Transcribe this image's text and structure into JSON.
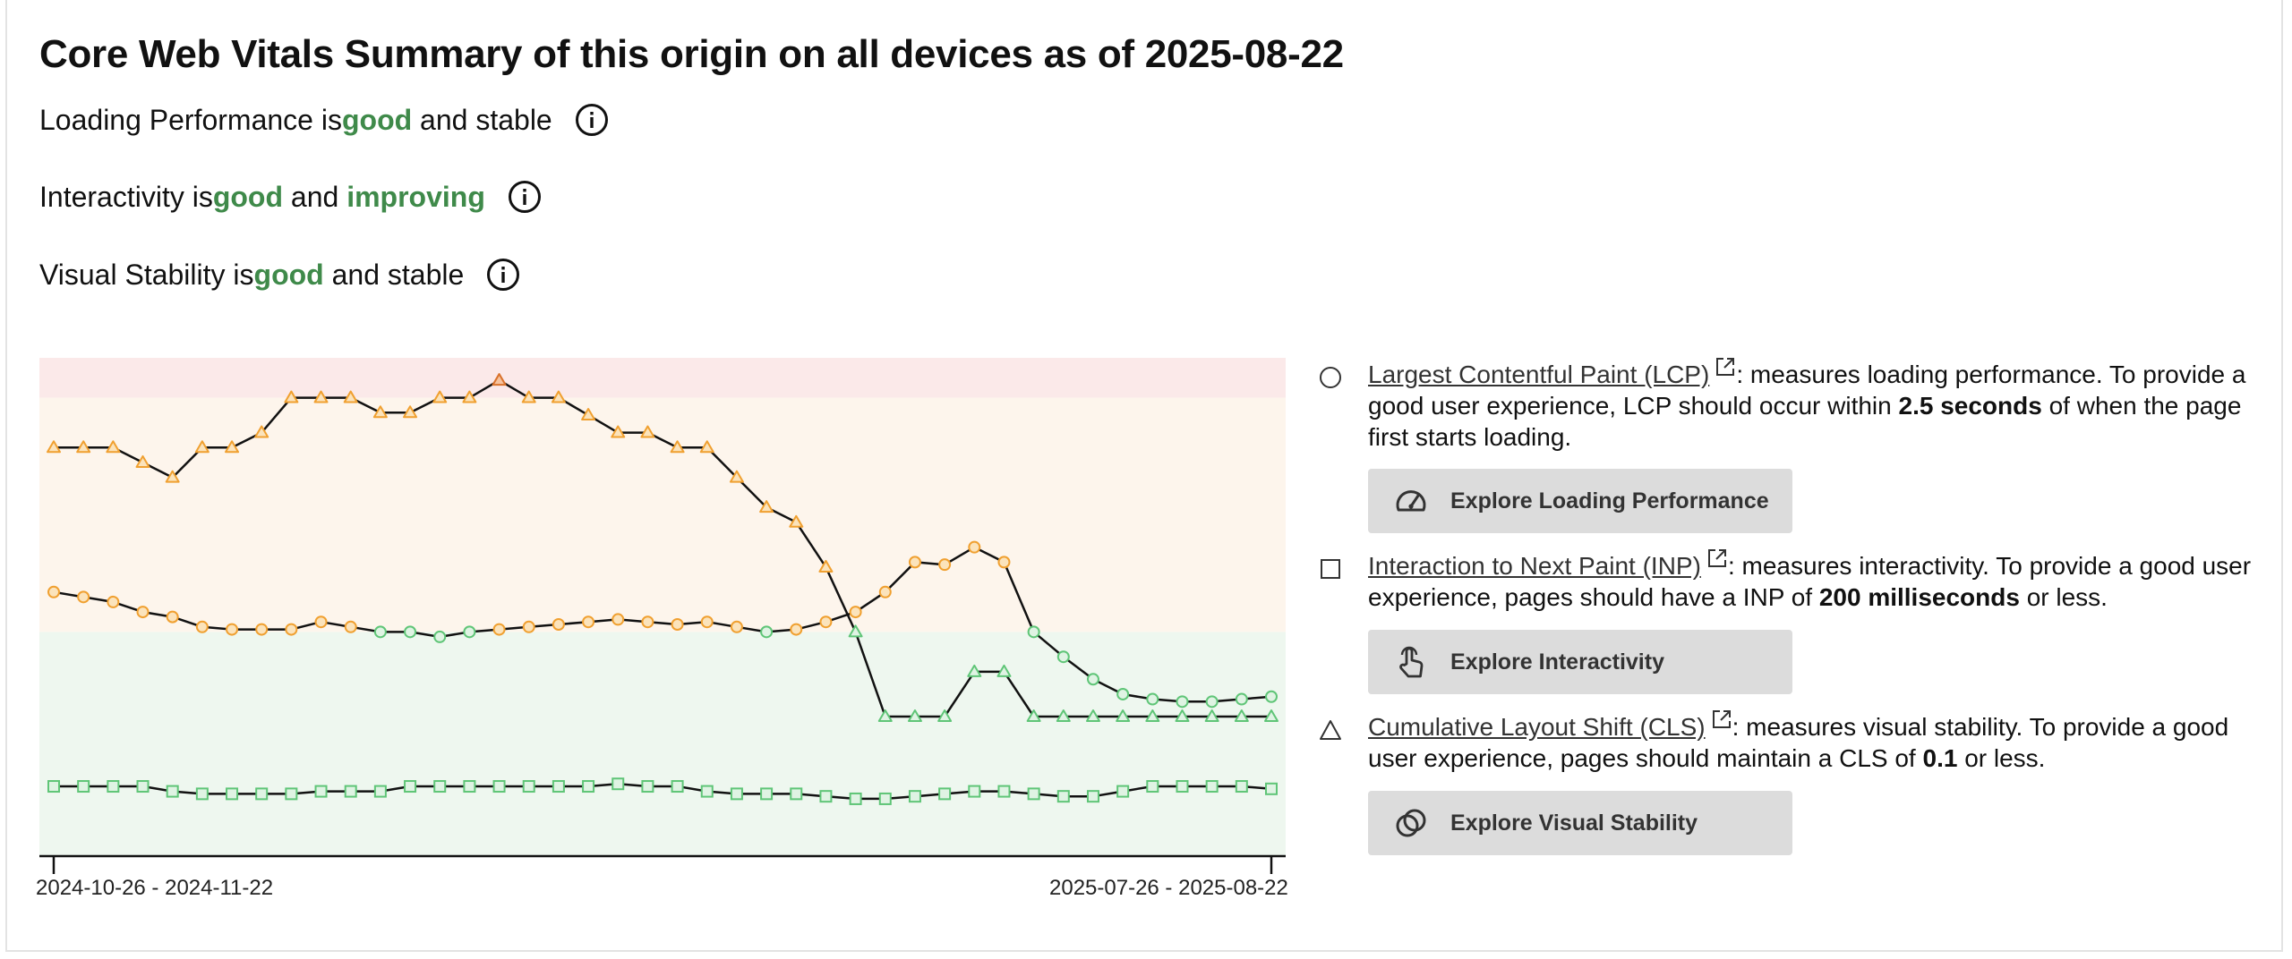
{
  "header": {
    "title": "Core Web Vitals Summary of this origin on all devices as of 2025-08-22"
  },
  "summary": [
    {
      "prefix": "Loading Performance is ",
      "status": "good",
      "middle": " and ",
      "trend": "stable",
      "trend_good": false
    },
    {
      "prefix": "Interactivity is ",
      "status": "good",
      "middle": " and ",
      "trend": "improving",
      "trend_good": true
    },
    {
      "prefix": "Visual Stability is ",
      "status": "good",
      "middle": " and ",
      "trend": "stable",
      "trend_good": false
    }
  ],
  "metrics": [
    {
      "marker": "circle",
      "link": "Largest Contentful Paint (LCP)",
      "text_before": ": measures loading performance. To provide a good user experience, LCP should occur within ",
      "threshold": "2.5 seconds",
      "text_after": " of when the page first starts loading.",
      "button": "Explore Loading Performance",
      "button_icon": "speedometer-icon"
    },
    {
      "marker": "square",
      "link": "Interaction to Next Paint (INP)",
      "text_before": ": measures interactivity. To provide a good user experience, pages should have a INP of ",
      "threshold": "200 milliseconds",
      "text_after": " or less.",
      "button": "Explore Interactivity",
      "button_icon": "touch-hand-icon"
    },
    {
      "marker": "triangle",
      "link": "Cumulative Layout Shift (CLS)",
      "text_before": ": measures visual stability. To provide a good user experience, pages should maintain a CLS of ",
      "threshold": "0.1",
      "text_after": " or less.",
      "button": "Explore Visual Stability",
      "button_icon": "overlapping-circles-icon"
    }
  ],
  "chart_data": {
    "type": "line",
    "x_first_label": "2024-10-26 - 2024-11-22",
    "x_last_label": "2025-07-26 - 2025-08-22",
    "y_axis": "relative score, 0 = best, 100 = worst (no printed scale)",
    "y_range": [
      0,
      100
    ],
    "bands": [
      {
        "name": "good",
        "from": 0,
        "to": 45,
        "color": "#eef7ef"
      },
      {
        "name": "needs-improvement",
        "from": 45,
        "to": 92,
        "color": "#fdf5ec"
      },
      {
        "name": "poor",
        "from": 92,
        "to": 100,
        "color": "#fbe9e9"
      }
    ],
    "colors": {
      "good": "#5fc577",
      "needs_improvement": "#f0a030",
      "poor": "#d9722c",
      "line": "#111111"
    },
    "series": [
      {
        "marker": "circle",
        "values": [
          53,
          52,
          51,
          49,
          48,
          46,
          45.5,
          45.5,
          45.5,
          47,
          46,
          45,
          45,
          44,
          45,
          45.5,
          46,
          46.5,
          47,
          47.5,
          47,
          46.5,
          47,
          46,
          45,
          45.5,
          47,
          49,
          53,
          59,
          58.5,
          62,
          59,
          45,
          40,
          35.5,
          32.5,
          31.5,
          31,
          31,
          31.5,
          32
        ]
      },
      {
        "marker": "triangle",
        "values": [
          82,
          82,
          82,
          79,
          76,
          82,
          82,
          85,
          92,
          92,
          92,
          89,
          89,
          92,
          92,
          95.5,
          92,
          92,
          88.5,
          85,
          85,
          82,
          82,
          76,
          70,
          67,
          58,
          45,
          28,
          28,
          28,
          37,
          37,
          28,
          28,
          28,
          28,
          28,
          28,
          28,
          28,
          28
        ]
      },
      {
        "marker": "square",
        "values": [
          14,
          14,
          14,
          14,
          13,
          12.5,
          12.5,
          12.5,
          12.5,
          13,
          13,
          13,
          14,
          14,
          14,
          14,
          14,
          14,
          14,
          14.5,
          14,
          14,
          13,
          12.5,
          12.5,
          12.5,
          12,
          11.5,
          11.5,
          12,
          12.5,
          13,
          13,
          12.5,
          12,
          12,
          13,
          14,
          14,
          14,
          14,
          13.5
        ]
      }
    ]
  }
}
